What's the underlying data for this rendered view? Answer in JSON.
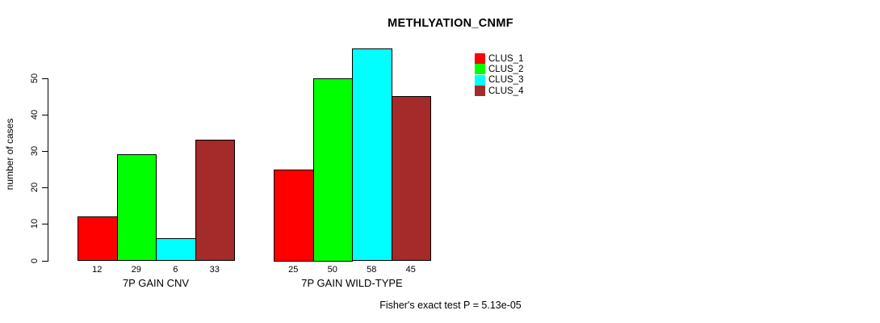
{
  "title": "METHLYATION_CNMF",
  "annotation": "Fisher's exact test P = 5.13e-05",
  "chart_data": {
    "type": "bar",
    "title": "METHLYATION_CNMF",
    "xlabel": "",
    "ylabel": "number of cases",
    "ylim": [
      0,
      58
    ],
    "yticks": [
      0,
      10,
      20,
      30,
      40,
      50
    ],
    "grid": false,
    "categories": [
      "7P GAIN CNV",
      "7P GAIN WILD-TYPE"
    ],
    "series": [
      {
        "name": "CLUS_1",
        "color": "#FF0000",
        "values": [
          12,
          25
        ]
      },
      {
        "name": "CLUS_2",
        "color": "#00FF00",
        "values": [
          29,
          50
        ]
      },
      {
        "name": "CLUS_3",
        "color": "#00FFFF",
        "values": [
          6,
          58
        ]
      },
      {
        "name": "CLUS_4",
        "color": "#A52A2A",
        "values": [
          33,
          45
        ]
      }
    ],
    "bar_labels": [
      [
        12,
        29,
        6,
        33
      ],
      [
        25,
        50,
        58,
        45
      ]
    ],
    "legend": {
      "position": "top-right",
      "entries": [
        "CLUS_1",
        "CLUS_2",
        "CLUS_3",
        "CLUS_4"
      ]
    },
    "annotation": "Fisher's exact test P = 5.13e-05"
  }
}
